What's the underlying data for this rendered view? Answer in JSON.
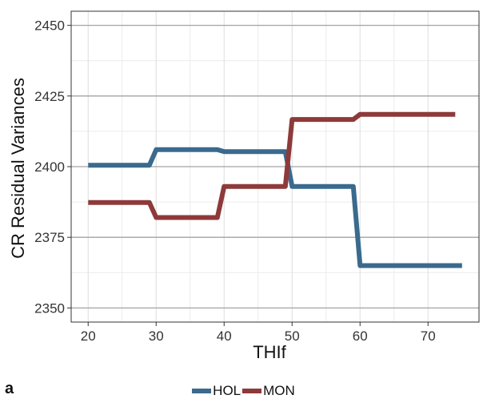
{
  "panel_label": "a",
  "chart_data": {
    "type": "line",
    "title": "",
    "xlabel": "THIf",
    "ylabel": "CR Residual Variances",
    "xlim": [
      17.5,
      77.5
    ],
    "ylim": [
      2345,
      2455
    ],
    "x_ticks": [
      20,
      30,
      40,
      50,
      60,
      70
    ],
    "x_ticklabels": [
      "20",
      "30",
      "40",
      "50",
      "60",
      "70"
    ],
    "y_ticks": [
      2350,
      2375,
      2400,
      2425,
      2450
    ],
    "y_ticklabels": [
      "2350",
      "2375",
      "2400",
      "2425",
      "2450"
    ],
    "grid": true,
    "legend_position": "bottom",
    "series": [
      {
        "name": "HOL",
        "color": "#3a6a8d",
        "points": [
          [
            20,
            2400.5
          ],
          [
            29,
            2400.5
          ],
          [
            30,
            2406
          ],
          [
            39,
            2406
          ],
          [
            40,
            2405.3
          ],
          [
            49,
            2405.3
          ],
          [
            50,
            2393
          ],
          [
            59,
            2393
          ],
          [
            60,
            2365
          ],
          [
            75,
            2365
          ]
        ]
      },
      {
        "name": "MON",
        "color": "#8e3a3a",
        "points": [
          [
            20,
            2387.3
          ],
          [
            29,
            2387.3
          ],
          [
            30,
            2382
          ],
          [
            39,
            2382
          ],
          [
            40,
            2393
          ],
          [
            49,
            2393
          ],
          [
            50,
            2416.7
          ],
          [
            59,
            2416.7
          ],
          [
            60,
            2418.5
          ],
          [
            74,
            2418.5
          ]
        ]
      }
    ]
  }
}
